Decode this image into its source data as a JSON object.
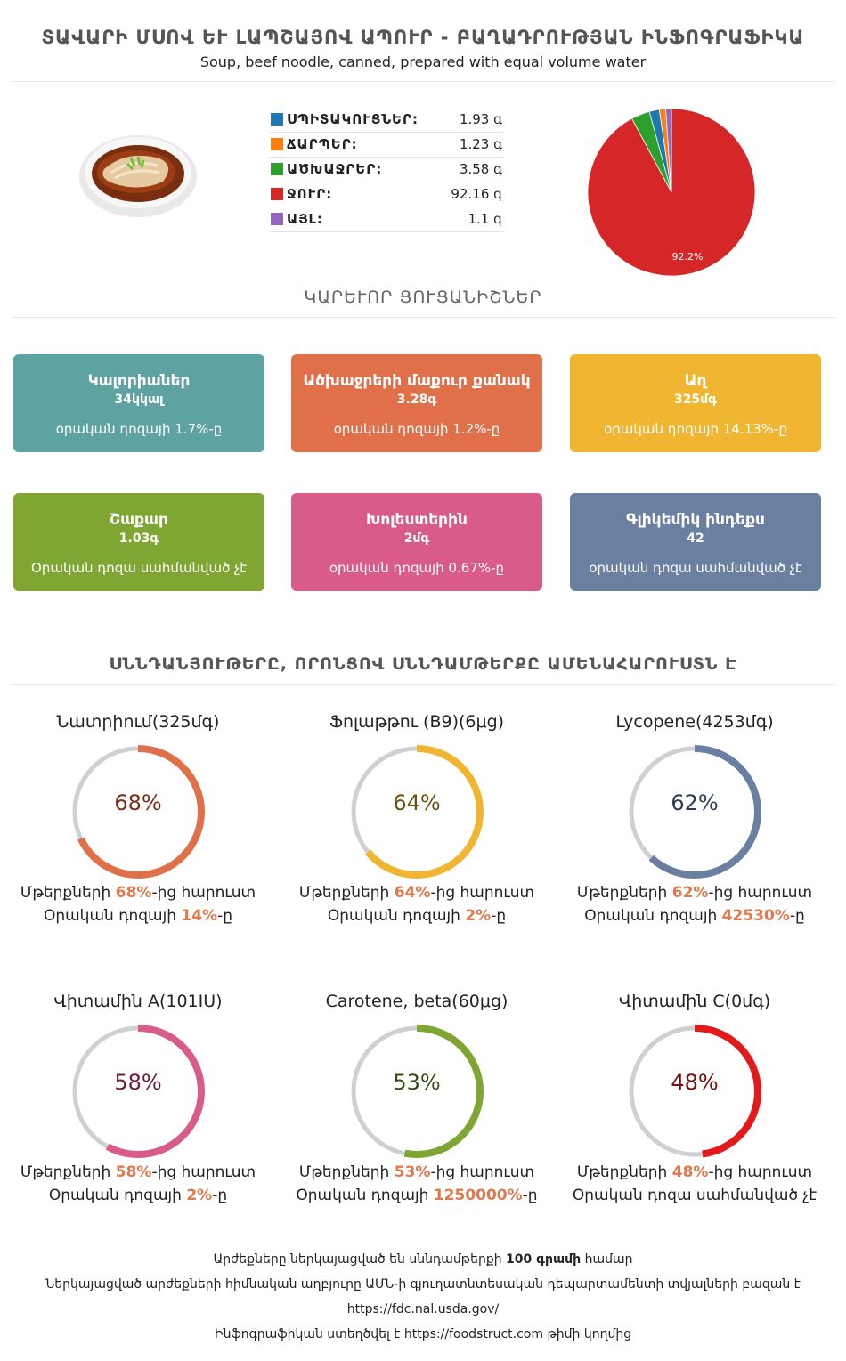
{
  "header": {
    "title": "ՏԱՎԱՐԻ ՄՍՈՎ ԵՒ ԼԱՊՇԱՅՈՎ ԱՊՈՒՐ - ԲԱՂԱԴՐՈՒԹՅԱՆ ԻՆՖՈԳՐԱՖԻԿԱ",
    "subtitle": "Soup, beef noodle, canned, prepared with equal volume water"
  },
  "composition": {
    "rows": [
      {
        "label": "ՍՊԻՏԱԿՈՒՑՆԵՐ:",
        "value": "1.93 գ",
        "color": "#1f77b4"
      },
      {
        "label": "ՃԱՐՊԵՐ:",
        "value": "1.23 գ",
        "color": "#ff7f0e"
      },
      {
        "label": "ԱԾԽԱՋՐԵՐ:",
        "value": "3.58 գ",
        "color": "#2ca02c"
      },
      {
        "label": "ՋՈՒՐ:",
        "value": "92.16 գ",
        "color": "#d62728"
      },
      {
        "label": "ԱՅԼ:",
        "value": "1.1 գ",
        "color": "#9467bd"
      }
    ],
    "pie_label": "92.2%"
  },
  "chart_data": {
    "type": "pie",
    "categories": [
      "ՍՊԻՏԱԿՈՒՑՆԵՐ",
      "ՃԱՐՊԵՐ",
      "ԱԾԽԱՋՐԵՐ",
      "ՋՈՒՐ",
      "ԱՅԼ"
    ],
    "values": [
      1.93,
      1.23,
      3.58,
      92.16,
      1.1
    ],
    "colors": [
      "#1f77b4",
      "#ff7f0e",
      "#2ca02c",
      "#d62728",
      "#9467bd"
    ]
  },
  "key_section": {
    "title": "ԿԱՐԵՒՈՐ ՑՈՒՑԱՆԻՇՆԵՐ"
  },
  "cards": [
    {
      "title": "Կալորիաներ",
      "value": "34կկալ",
      "note": "օրական դոզայի 1.7%-ը",
      "color": "#5ea2a2"
    },
    {
      "title": "Ածխաջրերի մաքուր քանակ",
      "value": "3.28գ",
      "note": "օրական դոզայի 1.2%-ը",
      "color": "#e0704a"
    },
    {
      "title": "Աղ",
      "value": "325մգ",
      "note": "օրական դոզայի 14.13%-ը",
      "color": "#f0b531"
    },
    {
      "title": "Շաքար",
      "value": "1.03գ",
      "note": "Օրական դոզա սահմանված չէ",
      "color": "#7fa533"
    },
    {
      "title": "Խոլեստերին",
      "value": "2մգ",
      "note": "օրական դոզայի 0.67%-ը",
      "color": "#d95b8a"
    },
    {
      "title": "Գլիկեմիկ ինդեքս",
      "value": "42",
      "note": "օրական դոզա սահմանված չէ",
      "color": "#6b7fa0"
    }
  ],
  "nutrients_section": {
    "title": "ՍՆՆԴԱՆՅՈՒԹԵՐԸ, ՈՐՈՆՑՈՎ ՍՆՆԴԱՄԹԵՐՔԸ ԱՄԵՆԱՀԱՐՈՒՍՏՆ Է"
  },
  "nutrients": [
    {
      "name": "Նատրիում(325մգ)",
      "pct": "68%",
      "fraction": 0.68,
      "color": "#e0704a",
      "pct_color": "#7a2e18",
      "l1_pre": "Մթերքների ",
      "l1_hl": "68%",
      "l1_post": "-ից հարուստ",
      "l2_pre": "Օրական դոզայի ",
      "l2_hl": "14%",
      "l2_post": "-ը"
    },
    {
      "name": "Ֆոլաթթու (B9)(6μg)",
      "pct": "64%",
      "fraction": 0.64,
      "color": "#f0b531",
      "pct_color": "#6b5210",
      "l1_pre": "Մթերքների ",
      "l1_hl": "64%",
      "l1_post": "-ից հարուստ",
      "l2_pre": "Օրական դոզայի ",
      "l2_hl": "2%",
      "l2_post": "-ը"
    },
    {
      "name": "Lycopene(4253մգ)",
      "pct": "62%",
      "fraction": 0.62,
      "color": "#6b7fa0",
      "pct_color": "#2c3a55",
      "l1_pre": "Մթերքների ",
      "l1_hl": "62%",
      "l1_post": "-ից հարուստ",
      "l2_pre": "Օրական դոզայի ",
      "l2_hl": "42530%",
      "l2_post": "-ը"
    },
    {
      "name": "Վիտամին A(101IU)",
      "pct": "58%",
      "fraction": 0.58,
      "color": "#d95b8a",
      "pct_color": "#6b1f3a",
      "l1_pre": "Մթերքների ",
      "l1_hl": "58%",
      "l1_post": "-ից հարուստ",
      "l2_pre": "Օրական դոզայի ",
      "l2_hl": "2%",
      "l2_post": "-ը"
    },
    {
      "name": "Carotene, beta(60μg)",
      "pct": "53%",
      "fraction": 0.53,
      "color": "#7fa533",
      "pct_color": "#3a4d14",
      "l1_pre": "Մթերքների ",
      "l1_hl": "53%",
      "l1_post": "-ից հարուստ",
      "l2_pre": "Օրական դոզայի ",
      "l2_hl": "1250000%",
      "l2_post": "-ը"
    },
    {
      "name": "Վիտամին C(0մգ)",
      "pct": "48%",
      "fraction": 0.48,
      "color": "#e31a1c",
      "pct_color": "#7a0c0d",
      "l1_pre": "Մթերքների ",
      "l1_hl": "48%",
      "l1_post": "-ից հարուստ",
      "l2_pre": "Օրական դոզա սահմանված չէ",
      "l2_hl": "",
      "l2_post": ""
    }
  ],
  "footer": {
    "line1_pre": "Արժեքները ներկայացված են սննդամթերքի ",
    "line1_bold": "100 գրամի",
    "line1_post": " համար",
    "line2": "Ներկայացված արժեքների հիմնական աղբյուրը ԱՄՆ-ի գյուղատնտեսական դեպարտամենտի տվյալների բազան է",
    "line3": "https://fdc.nal.usda.gov/",
    "line4": "Ինֆոգրաֆիկան ստեղծվել է https://foodstruct.com թիմի կողմից"
  }
}
